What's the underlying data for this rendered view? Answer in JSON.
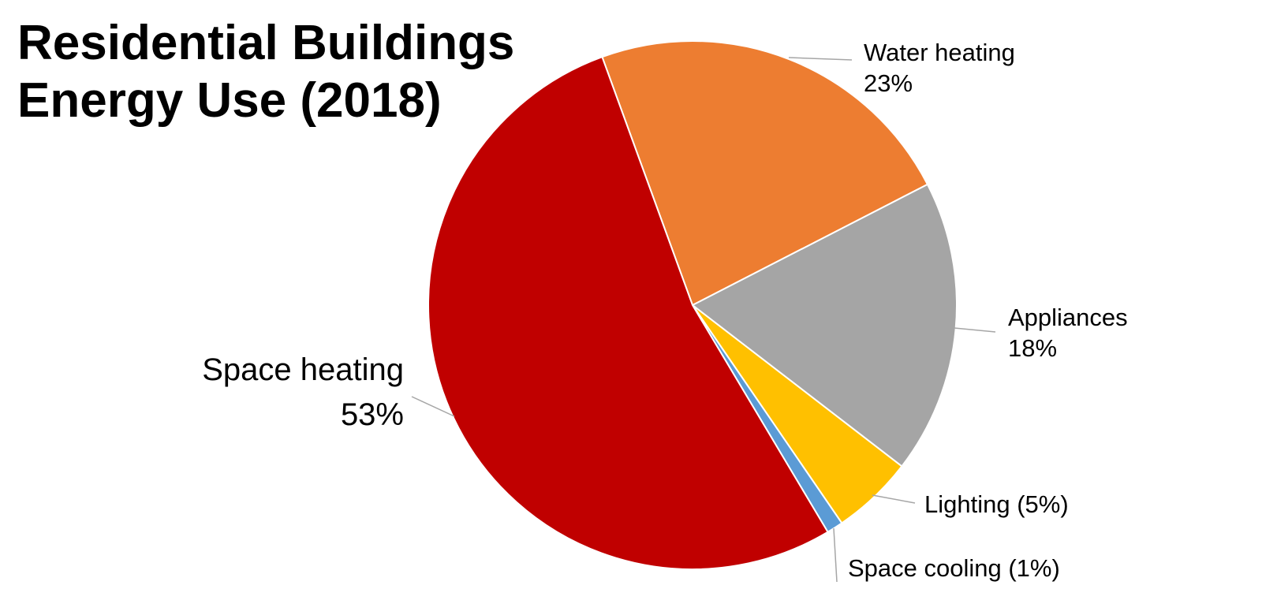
{
  "chart_data": {
    "type": "pie",
    "title": [
      "Residential Buildings",
      "Energy Use (2018)"
    ],
    "slices": [
      {
        "name": "Water heating",
        "value": 23,
        "color": "#ed7d31",
        "label_lines": [
          "Water heating",
          "23%"
        ]
      },
      {
        "name": "Appliances",
        "value": 18,
        "color": "#a5a5a5",
        "label_lines": [
          "Appliances",
          "18%"
        ]
      },
      {
        "name": "Lighting",
        "value": 5,
        "color": "#ffc000",
        "label_lines": [
          "Lighting (5%)"
        ]
      },
      {
        "name": "Space cooling",
        "value": 1,
        "color": "#5b9bd5",
        "label_lines": [
          "Space cooling (1%)"
        ]
      },
      {
        "name": "Space heating",
        "value": 53,
        "color": "#c00000",
        "label_lines": [
          "Space heating",
          "53%"
        ]
      }
    ]
  }
}
